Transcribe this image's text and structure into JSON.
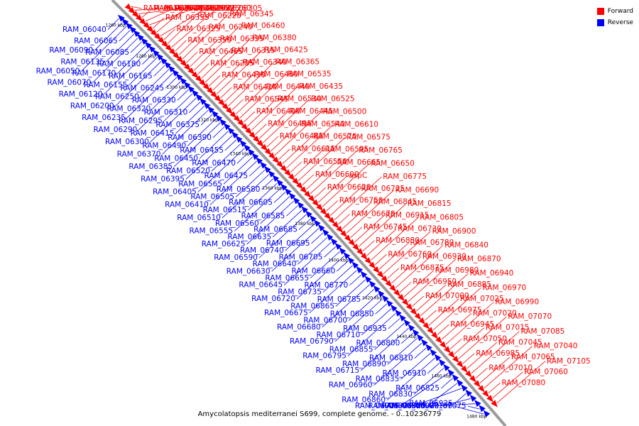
{
  "legend": {
    "forward_label": "Forward",
    "reverse_label": "Reverse",
    "forward_color": "#ff0000",
    "reverse_color": "#0000ff"
  },
  "caption": "Amycolatopsis mediterranei S699, complete genome. - 0..10236779",
  "ticks": [
    "1260 kbp",
    "1280 kbp",
    "1300 kbp",
    "1320 kbp",
    "1340 kbp",
    "1360 kbp",
    "1380 kbp",
    "1400 kbp",
    "1420 kbp",
    "1440 kbp",
    "1460 kbp",
    "1480 kbp"
  ],
  "reverse_genes": [
    "RAM_06040",
    "RAM_06090",
    "RAM_06050",
    "RAM_06065",
    "RAM_06135",
    "RAM_06070",
    "RAM_06085",
    "RAM_06170",
    "RAM_06120",
    "RAM_06180",
    "RAM_06155",
    "RAM_06200",
    "RAM_06165",
    "RAM_06250",
    "RAM_06235",
    "RAM_06245",
    "RAM_06320",
    "RAM_06290",
    "RAM_06330",
    "RAM_06295",
    "RAM_06300",
    "RAM_06310",
    "RAM_06415",
    "RAM_06370",
    "RAM_06375",
    "RAM_06490",
    "RAM_06385",
    "RAM_06390",
    "RAM_06450",
    "RAM_06395",
    "RAM_06455",
    "RAM_06520",
    "RAM_06405",
    "RAM_06470",
    "RAM_06565",
    "RAM_06410",
    "RAM_06475",
    "RAM_06505",
    "RAM_06510",
    "RAM_06580",
    "RAM_06515",
    "RAM_06555",
    "RAM_06605",
    "RAM_06560",
    "RAM_06625",
    "RAM_06585",
    "RAM_06635",
    "RAM_06590",
    "RAM_06685",
    "RAM_06740",
    "RAM_06630",
    "RAM_06695",
    "RAM_06640",
    "RAM_06645",
    "RAM_06705",
    "RAM_06655",
    "RAM_06720",
    "RAM_06660",
    "RAM_06735",
    "RAM_06675",
    "RAM_06770",
    "RAM_06865",
    "RAM_06680",
    "RAM_06785",
    "RAM_06700",
    "RAM_06790",
    "RAM_06850",
    "RAM_06710",
    "RAM_06795",
    "RAM_06935",
    "RAM_06855",
    "RAM_06715",
    "RAM_06800",
    "RAM_06890",
    "RAM_06960",
    "RAM_06810",
    "RAM_06835",
    "RAM_06860",
    "RAM_06910",
    "RAM_06830",
    "RAM_06905",
    "RAM_06825",
    "RAM_06820",
    "RAM_06895",
    "RAM_06925",
    "RAM_06920",
    "RAM_06965",
    "RAM_07075",
    "RAM_07100"
  ],
  "forward_genes": [
    "RAM_06160",
    "RAM_06205",
    "RAM_06255",
    "RAM_06360",
    "RAM_06190",
    "RAM_06225",
    "RAM_06355",
    "RAM_06195",
    "RAM_06260",
    "RAM_06325",
    "RAM_06220",
    "RAM_06305",
    "RAM_06350",
    "RAM_06240",
    "RAM_06345",
    "RAM_06465",
    "RAM_06335",
    "RAM_06460",
    "RAM_06285",
    "RAM_06315",
    "RAM_06380",
    "RAM_06430",
    "RAM_06340",
    "RAM_06425",
    "RAM_06420",
    "RAM_06480",
    "RAM_06365",
    "RAM_06545",
    "RAM_06440",
    "RAM_06535",
    "RAM_06400",
    "RAM_06530",
    "RAM_06435",
    "RAM_06495",
    "RAM_06445",
    "RAM_06525",
    "RAM_06485",
    "RAM_06540",
    "RAM_06500",
    "RAM_06615",
    "RAM_06570",
    "RAM_06610",
    "RAM_06550",
    "RAM_06595",
    "RAM_06575",
    "RAM_06600",
    "RAM_06665",
    "RAM_06765",
    "RAM_06620",
    "aspC",
    "RAM_06650",
    "RAM_06750",
    "RAM_06725",
    "RAM_06775",
    "RAM_06670",
    "RAM_06845",
    "RAM_06690",
    "RAM_06745",
    "RAM_06915",
    "RAM_06815",
    "RAM_06880",
    "RAM_06730",
    "RAM_06805",
    "RAM_06760",
    "RAM_06780",
    "RAM_06900",
    "RAM_06875",
    "RAM_06930",
    "RAM_06840",
    "RAM_06950",
    "RAM_06980",
    "RAM_06870",
    "RAM_07000",
    "RAM_06885",
    "RAM_06940",
    "RAM_06975",
    "RAM_07025",
    "RAM_06970",
    "RAM_06945",
    "RAM_07020",
    "RAM_06990",
    "RAM_07050",
    "RAM_07015",
    "RAM_07070",
    "RAM_06985",
    "RAM_07045",
    "RAM_07085",
    "RAM_07010",
    "RAM_07065",
    "RAM_07040",
    "RAM_07080",
    "RAM_07060",
    "RAM_07105"
  ]
}
